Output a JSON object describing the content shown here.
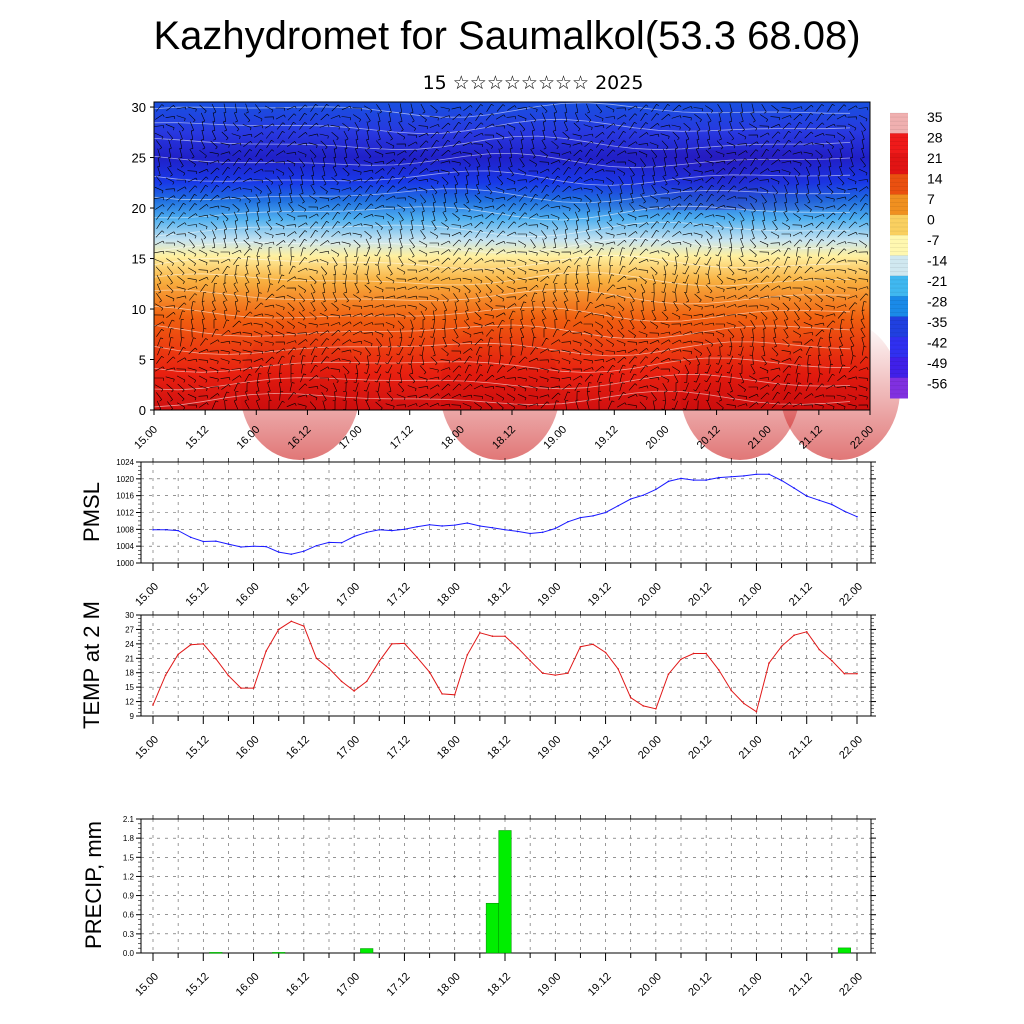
{
  "page": {
    "title": "Kazhydromet for Saumalkol(53.3 68.08)",
    "subtitle": "15 ☆☆☆☆☆☆☆☆ 2025"
  },
  "time_labels": [
    "15.00",
    "15.12",
    "16.00",
    "16.12",
    "17.00",
    "17.12",
    "18.00",
    "18.12",
    "19.00",
    "19.12",
    "20.00",
    "20.12",
    "21.00",
    "21.12",
    "22.00"
  ],
  "chart_data": [
    {
      "type": "heatmap",
      "name": "cross-section",
      "x_ticks": [
        "15.00",
        "15.12",
        "16.00",
        "16.12",
        "17.00",
        "17.12",
        "18.00",
        "18.12",
        "19.00",
        "19.12",
        "20.00",
        "20.12",
        "21.00",
        "21.12",
        "22.00"
      ],
      "y_ticks": [
        0,
        5,
        10,
        15,
        20,
        25,
        30
      ],
      "ylim": [
        0,
        30.5
      ],
      "colorbar": {
        "labels": [
          "35",
          "28",
          "21",
          "14",
          "7",
          "0",
          "-7",
          "-14",
          "-21",
          "-28",
          "-35",
          "-42",
          "-49",
          "-56"
        ],
        "colors": [
          "#f0b0b0",
          "#ef1a1a",
          "#e21414",
          "#ea5010",
          "#f09020",
          "#fad060",
          "#fff8b0",
          "#d0e8f0",
          "#40b8f0",
          "#1a8ae8",
          "#2040e0",
          "#3030f0",
          "#4020e8",
          "#8030e0"
        ]
      },
      "wind_barbs": true
    },
    {
      "type": "line",
      "ylabel": "PMSL",
      "ylim": [
        1000,
        1024
      ],
      "y_ticks": [
        1000,
        1004,
        1008,
        1012,
        1016,
        1020,
        1024
      ],
      "color": "#1a1aff",
      "x": [
        0,
        3,
        6,
        9,
        12,
        15,
        18,
        21,
        24,
        27,
        30,
        33,
        36,
        39,
        42,
        45,
        48,
        51,
        54,
        57,
        60,
        63,
        66,
        69,
        72,
        75,
        78,
        81,
        84,
        87,
        90,
        93,
        96,
        99,
        102,
        105,
        108,
        111,
        114,
        117,
        120,
        123,
        126,
        129,
        132,
        135,
        138,
        141,
        144,
        147,
        150,
        153,
        156,
        159,
        162,
        165,
        168
      ],
      "values": [
        1007.9,
        1007.9,
        1007.7,
        1006.1,
        1005.1,
        1005.2,
        1004.5,
        1003.8,
        1004.0,
        1003.9,
        1002.6,
        1002.1,
        1002.8,
        1004.1,
        1004.9,
        1004.8,
        1006.3,
        1007.3,
        1007.9,
        1007.7,
        1008.0,
        1008.6,
        1009.1,
        1008.8,
        1009.0,
        1009.5,
        1008.8,
        1008.4,
        1007.9,
        1007.5,
        1007.0,
        1007.3,
        1008.2,
        1009.8,
        1010.8,
        1011.2,
        1012.0,
        1013.6,
        1015.2,
        1016.1,
        1017.5,
        1019.4,
        1020.1,
        1019.7,
        1019.7,
        1020.3,
        1020.5,
        1020.7,
        1021.1,
        1021.1,
        1019.6,
        1017.8,
        1015.9,
        1014.9,
        1013.9,
        1012.3,
        1011.0
      ]
    },
    {
      "type": "line",
      "ylabel": "TEMP at 2 M",
      "ylim": [
        9,
        30
      ],
      "y_ticks": [
        9,
        12,
        15,
        18,
        21,
        24,
        27,
        30
      ],
      "color": "#e01818",
      "x": [
        0,
        3,
        6,
        9,
        12,
        15,
        18,
        21,
        24,
        27,
        30,
        33,
        36,
        39,
        42,
        45,
        48,
        51,
        54,
        57,
        60,
        63,
        66,
        69,
        72,
        75,
        78,
        81,
        84,
        87,
        90,
        93,
        96,
        99,
        102,
        105,
        108,
        111,
        114,
        117,
        120,
        123,
        126,
        129,
        132,
        135,
        138,
        141,
        144,
        147,
        150,
        153,
        156,
        159,
        162,
        165,
        168
      ],
      "values": [
        11.3,
        17.5,
        21.8,
        23.8,
        24.0,
        20.9,
        17.4,
        14.8,
        14.8,
        22.5,
        27.0,
        28.7,
        27.7,
        21.0,
        18.9,
        16.2,
        14.2,
        16.2,
        20.4,
        24.0,
        24.1,
        21.2,
        18.1,
        13.6,
        13.4,
        21.7,
        26.3,
        25.6,
        25.6,
        23.2,
        20.5,
        17.9,
        17.5,
        17.9,
        23.4,
        23.9,
        22.2,
        18.8,
        12.8,
        11.1,
        10.5,
        17.7,
        20.8,
        22.0,
        22.0,
        18.6,
        14.3,
        11.6,
        9.9,
        20.0,
        23.5,
        25.8,
        26.5,
        22.8,
        20.5,
        17.8,
        17.8
      ]
    },
    {
      "type": "bar",
      "ylabel": "PRECIP, mm",
      "ylim": [
        0,
        2.1
      ],
      "y_ticks": [
        "0.0",
        "0.3",
        "0.6",
        "0.9",
        "1.2",
        "1.5",
        "1.8",
        "2.1"
      ],
      "color": "#00ee00",
      "bars": [
        {
          "x": 15,
          "value": 0.01
        },
        {
          "x": 30,
          "value": 0.01
        },
        {
          "x": 51,
          "value": 0.07
        },
        {
          "x": 81,
          "value": 0.78
        },
        {
          "x": 84,
          "value": 1.92
        },
        {
          "x": 165,
          "value": 0.08
        }
      ]
    }
  ]
}
